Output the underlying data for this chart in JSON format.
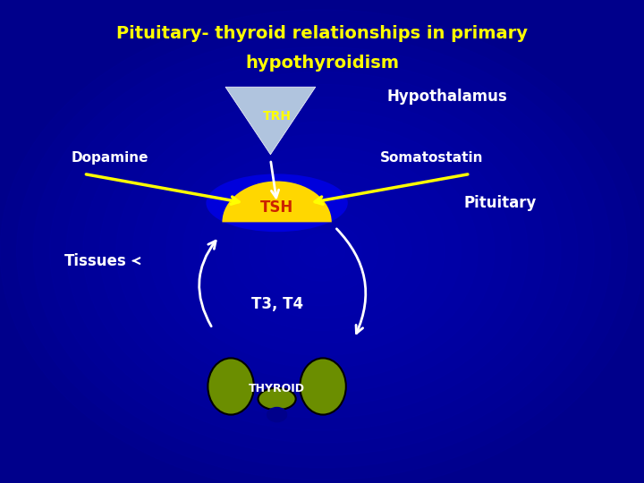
{
  "title_line1": "Pituitary- thyroid relationships in primary",
  "title_line2": "hypothyroidism",
  "title_color": "#FFFF00",
  "bg_color": "#00008B",
  "bg_gradient_center": "#0000CC",
  "hypothalamus_label": "Hypothalamus",
  "dopamine_label": "Dopamine",
  "somatostatin_label": "Somatostatin",
  "pituitary_label": "Pituitary",
  "trh_label": "TRH",
  "tsh_label": "TSH",
  "tissues_label": "Tissues",
  "t3t4_label": "T3, T4",
  "thyroid_label": "THYROID",
  "trh_triangle_color": "#B0C4DE",
  "trh_text_color": "#FFFF00",
  "tsh_circle_color": "#FFD700",
  "tsh_text_color": "#CC2200",
  "thyroid_color": "#6B8E00",
  "thyroid_outline": "#000000",
  "arrow_color": "#FFFFFF",
  "dopamine_arrow_color": "#FFFF00",
  "somatostatin_arrow_color": "#FFFF00",
  "white_text_color": "#FFFFFF",
  "blue_glow_color": "#4444FF"
}
